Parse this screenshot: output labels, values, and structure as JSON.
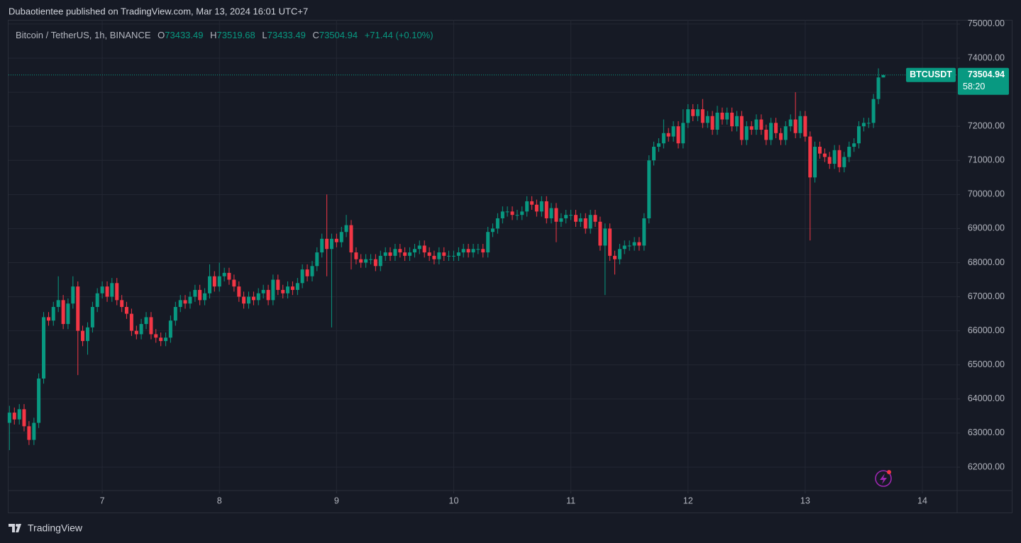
{
  "header": {
    "publisher": "Dubaotientee published on TradingView.com, Mar 13, 2024 16:01 UTC+7"
  },
  "chart_data": {
    "type": "candlestick",
    "title": "Bitcoin / TetherUS, 1h, BINANCE",
    "ohlc_labels": [
      "O",
      "H",
      "L",
      "C"
    ],
    "change_label": "+71.44 (+0.10%)",
    "symbol": "BTCUSDT",
    "countdown": "58:20",
    "up_color": "#089981",
    "down_color": "#f23645",
    "grid": true,
    "xlim": [
      6.2,
      14.297
    ],
    "ylim": [
      61314,
      75123
    ],
    "xticks": [
      7,
      8,
      9,
      10,
      11,
      12,
      13,
      14
    ],
    "yticks": [
      {
        "value": 62000,
        "label": "62000.00"
      },
      {
        "value": 63000,
        "label": "63000.00"
      },
      {
        "value": 64000,
        "label": "64000.00"
      },
      {
        "value": 65000,
        "label": "65000.00"
      },
      {
        "value": 66000,
        "label": "66000.00"
      },
      {
        "value": 67000,
        "label": "67000.00"
      },
      {
        "value": 68000,
        "label": "68000.00"
      },
      {
        "value": 69000,
        "label": "69000.00"
      },
      {
        "value": 70000,
        "label": "70000.00"
      },
      {
        "value": 71000,
        "label": "71000.00"
      },
      {
        "value": 72000,
        "label": "72000.00"
      },
      {
        "value": 73000,
        "label": "73000.00"
      },
      {
        "value": 74000,
        "label": "74000.00"
      },
      {
        "value": 75000,
        "label": "75000.00"
      }
    ],
    "x": [
      6.208,
      6.25,
      6.292,
      6.333,
      6.375,
      6.417,
      6.458,
      6.5,
      6.542,
      6.583,
      6.625,
      6.667,
      6.708,
      6.75,
      6.792,
      6.833,
      6.875,
      6.917,
      6.958,
      7,
      7.042,
      7.083,
      7.125,
      7.167,
      7.208,
      7.25,
      7.292,
      7.333,
      7.375,
      7.417,
      7.458,
      7.5,
      7.542,
      7.583,
      7.625,
      7.667,
      7.708,
      7.75,
      7.792,
      7.833,
      7.875,
      7.917,
      7.958,
      8,
      8.042,
      8.083,
      8.125,
      8.167,
      8.208,
      8.25,
      8.292,
      8.333,
      8.375,
      8.417,
      8.458,
      8.5,
      8.542,
      8.583,
      8.625,
      8.667,
      8.708,
      8.75,
      8.792,
      8.833,
      8.875,
      8.917,
      8.958,
      9,
      9.042,
      9.083,
      9.125,
      9.167,
      9.208,
      9.25,
      9.292,
      9.333,
      9.375,
      9.417,
      9.458,
      9.5,
      9.542,
      9.583,
      9.625,
      9.667,
      9.708,
      9.75,
      9.792,
      9.833,
      9.875,
      9.917,
      9.958,
      10,
      10.042,
      10.083,
      10.125,
      10.167,
      10.208,
      10.25,
      10.292,
      10.333,
      10.375,
      10.417,
      10.458,
      10.5,
      10.542,
      10.583,
      10.625,
      10.667,
      10.708,
      10.75,
      10.792,
      10.833,
      10.875,
      10.917,
      10.958,
      11,
      11.042,
      11.083,
      11.125,
      11.167,
      11.208,
      11.25,
      11.292,
      11.333,
      11.375,
      11.417,
      11.458,
      11.5,
      11.542,
      11.583,
      11.625,
      11.667,
      11.708,
      11.75,
      11.792,
      11.833,
      11.875,
      11.917,
      11.958,
      12,
      12.042,
      12.083,
      12.125,
      12.167,
      12.208,
      12.25,
      12.292,
      12.333,
      12.375,
      12.417,
      12.458,
      12.5,
      12.542,
      12.583,
      12.625,
      12.667,
      12.708,
      12.75,
      12.792,
      12.833,
      12.875,
      12.917,
      12.958,
      13,
      13.042,
      13.083,
      13.125,
      13.167,
      13.208,
      13.25,
      13.292,
      13.333,
      13.375,
      13.417,
      13.458,
      13.5,
      13.542,
      13.583,
      13.625,
      13.667
    ],
    "open": [
      63300,
      63600,
      63400,
      63700,
      63200,
      62800,
      63300,
      64600,
      66400,
      66300,
      66700,
      66900,
      66200,
      66800,
      67300,
      66000,
      65700,
      66100,
      66700,
      67100,
      67300,
      67000,
      67400,
      66900,
      66700,
      66500,
      66000,
      65900,
      66200,
      66400,
      65900,
      65800,
      65700,
      65800,
      66300,
      66700,
      66900,
      66800,
      67000,
      67200,
      66900,
      67100,
      67600,
      67300,
      67600,
      67700,
      67500,
      67300,
      67000,
      66800,
      67000,
      66900,
      67100,
      67200,
      66900,
      67500,
      67200,
      67100,
      67300,
      67200,
      67400,
      67800,
      67600,
      67900,
      68300,
      68700,
      68400,
      68700,
      68600,
      68900,
      69100,
      68300,
      68100,
      68000,
      68100,
      68100,
      67900,
      68200,
      68300,
      68200,
      68400,
      68300,
      68200,
      68300,
      68400,
      68500,
      68300,
      68200,
      68100,
      68300,
      68200,
      68200,
      68200,
      68300,
      68400,
      68300,
      68400,
      68400,
      68300,
      68900,
      69000,
      69300,
      69500,
      69500,
      69400,
      69400,
      69500,
      69800,
      69700,
      69500,
      69800,
      69300,
      69600,
      69200,
      69300,
      69400,
      69400,
      69200,
      69300,
      69000,
      69400,
      69200,
      68500,
      69000,
      68200,
      68100,
      68400,
      68500,
      68500,
      68600,
      68500,
      69300,
      71000,
      71400,
      71500,
      71800,
      71700,
      72000,
      71500,
      72100,
      72500,
      72300,
      72500,
      72100,
      72300,
      71900,
      72400,
      72200,
      72400,
      72000,
      72300,
      71600,
      72000,
      71900,
      72200,
      71900,
      71600,
      72100,
      71800,
      71600,
      72000,
      72200,
      71800,
      72300,
      71700,
      70500,
      71400,
      71200,
      71100,
      70900,
      71300,
      70800,
      71100,
      71400,
      71500,
      72000,
      72100,
      72100,
      72800,
      73433.49
    ],
    "high": [
      63800,
      63750,
      63850,
      63850,
      63350,
      63450,
      64750,
      66550,
      66550,
      66850,
      67600,
      67050,
      66950,
      67600,
      67450,
      66150,
      66250,
      66850,
      67250,
      67450,
      67450,
      67550,
      67550,
      67050,
      66850,
      66650,
      66150,
      66350,
      66550,
      66550,
      66050,
      65950,
      65950,
      66450,
      66850,
      67050,
      67050,
      67150,
      67350,
      67350,
      67250,
      67950,
      67750,
      68000,
      67850,
      67850,
      67650,
      67450,
      67150,
      67150,
      67150,
      67250,
      67350,
      67350,
      67650,
      67650,
      67350,
      67450,
      67450,
      67550,
      67950,
      67950,
      68050,
      68450,
      68850,
      70000,
      68850,
      68850,
      69050,
      69400,
      69250,
      68450,
      68250,
      68250,
      68250,
      68250,
      68350,
      68450,
      68450,
      68550,
      68550,
      68450,
      68450,
      68550,
      68650,
      68650,
      68450,
      68350,
      68450,
      68450,
      68350,
      68350,
      68450,
      68550,
      68550,
      68550,
      68550,
      68550,
      69050,
      69150,
      69450,
      69650,
      69650,
      69650,
      69550,
      69650,
      69950,
      69950,
      69850,
      69950,
      69950,
      69750,
      69750,
      69450,
      69550,
      69550,
      69550,
      69450,
      69450,
      69550,
      69550,
      69350,
      69150,
      69150,
      68350,
      68550,
      68650,
      68650,
      68750,
      68750,
      69450,
      71150,
      71550,
      71650,
      72200,
      71950,
      72150,
      72150,
      72500,
      72650,
      72650,
      72650,
      72800,
      72450,
      72450,
      72600,
      72550,
      72550,
      72550,
      72450,
      72450,
      72150,
      72150,
      72350,
      72350,
      72050,
      72250,
      72250,
      71950,
      72150,
      72350,
      73000,
      72450,
      72450,
      71850,
      71550,
      71550,
      71350,
      71250,
      71450,
      71450,
      71250,
      71550,
      71650,
      72150,
      72250,
      72250,
      72950,
      73700,
      73519.68
    ],
    "low": [
      62500,
      63250,
      63250,
      63050,
      62650,
      62650,
      63150,
      64450,
      66150,
      66150,
      66550,
      66050,
      66050,
      66650,
      64700,
      65550,
      65300,
      65950,
      66550,
      66950,
      66850,
      66850,
      66750,
      66550,
      66350,
      65850,
      65750,
      65750,
      66050,
      65750,
      65650,
      65550,
      65550,
      65650,
      66150,
      66550,
      66650,
      66650,
      66850,
      66750,
      66750,
      66950,
      67150,
      67150,
      67450,
      67350,
      67150,
      66850,
      66650,
      66650,
      66750,
      66750,
      66950,
      66750,
      66750,
      67050,
      66950,
      66950,
      67050,
      67050,
      67250,
      67450,
      67450,
      67750,
      68150,
      67600,
      66100,
      68450,
      68450,
      68750,
      67800,
      67950,
      67850,
      67850,
      67950,
      67750,
      67750,
      68050,
      68050,
      68050,
      68150,
      68050,
      68050,
      68150,
      68250,
      68150,
      68050,
      67950,
      67950,
      68050,
      68050,
      68050,
      68050,
      68150,
      68150,
      68150,
      68250,
      68150,
      68150,
      68750,
      68850,
      69150,
      69350,
      69250,
      69250,
      69250,
      69350,
      69550,
      69350,
      69350,
      69150,
      69150,
      68600,
      69050,
      69150,
      69250,
      69050,
      69050,
      68850,
      68850,
      69050,
      68350,
      67050,
      68050,
      67650,
      67950,
      68250,
      68350,
      68350,
      68350,
      68350,
      69150,
      70850,
      71250,
      71350,
      71550,
      71550,
      71350,
      71350,
      71950,
      72150,
      72150,
      71950,
      71950,
      71750,
      71750,
      72050,
      72050,
      71850,
      71850,
      71450,
      71450,
      71750,
      71750,
      71750,
      71450,
      71450,
      71650,
      71450,
      71450,
      71850,
      71650,
      71650,
      71550,
      68650,
      70350,
      71050,
      70950,
      70750,
      70750,
      70650,
      70650,
      70950,
      71250,
      71350,
      71850,
      71950,
      71950,
      72650,
      73433.49
    ],
    "close": [
      63600,
      63400,
      63700,
      63200,
      62800,
      63300,
      64600,
      66400,
      66300,
      66700,
      66900,
      66200,
      66800,
      67300,
      66000,
      65700,
      66100,
      66700,
      67100,
      67300,
      67000,
      67400,
      66900,
      66700,
      66500,
      66000,
      65900,
      66200,
      66400,
      65900,
      65800,
      65700,
      65800,
      66300,
      66700,
      66900,
      66800,
      67000,
      67200,
      66900,
      67100,
      67600,
      67300,
      67600,
      67700,
      67500,
      67300,
      67000,
      66800,
      67000,
      66900,
      67100,
      67200,
      66900,
      67500,
      67200,
      67100,
      67300,
      67200,
      67400,
      67800,
      67600,
      67900,
      68300,
      68700,
      68400,
      68700,
      68600,
      68900,
      69100,
      68300,
      68100,
      68000,
      68100,
      68100,
      67900,
      68200,
      68300,
      68200,
      68400,
      68300,
      68200,
      68300,
      68400,
      68500,
      68300,
      68200,
      68100,
      68300,
      68200,
      68200,
      68200,
      68300,
      68400,
      68300,
      68400,
      68400,
      68300,
      68900,
      69000,
      69300,
      69500,
      69500,
      69400,
      69400,
      69500,
      69800,
      69700,
      69500,
      69800,
      69300,
      69600,
      69200,
      69300,
      69400,
      69400,
      69200,
      69300,
      69000,
      69400,
      69200,
      68500,
      69000,
      68200,
      68100,
      68400,
      68500,
      68500,
      68600,
      68500,
      69300,
      71000,
      71400,
      71500,
      71800,
      71700,
      72000,
      71500,
      72100,
      72500,
      72300,
      72500,
      72100,
      72300,
      71900,
      72400,
      72200,
      72400,
      72000,
      72300,
      71600,
      72000,
      71900,
      72200,
      71900,
      71600,
      72100,
      71800,
      71600,
      72000,
      72200,
      71800,
      72300,
      71700,
      70500,
      71400,
      71200,
      71100,
      70900,
      71300,
      70800,
      71100,
      71400,
      71500,
      72000,
      72100,
      72100,
      72800,
      73433.49,
      73504.94
    ]
  },
  "footer": {
    "brand": "TradingView"
  }
}
